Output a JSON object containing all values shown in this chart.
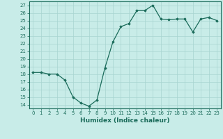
{
  "x": [
    0,
    1,
    2,
    3,
    4,
    5,
    6,
    7,
    8,
    9,
    10,
    11,
    12,
    13,
    14,
    15,
    16,
    17,
    18,
    19,
    20,
    21,
    22,
    23
  ],
  "y": [
    18.2,
    18.2,
    18.0,
    18.0,
    17.2,
    15.0,
    14.2,
    13.8,
    14.6,
    18.8,
    22.2,
    24.2,
    24.6,
    26.3,
    26.3,
    27.0,
    25.2,
    25.1,
    25.2,
    25.2,
    23.5,
    25.2,
    25.4,
    25.0
  ],
  "xlabel": "Humidex (Indice chaleur)",
  "xlim": [
    -0.5,
    23.5
  ],
  "ylim": [
    13.5,
    27.5
  ],
  "yticks": [
    14,
    15,
    16,
    17,
    18,
    19,
    20,
    21,
    22,
    23,
    24,
    25,
    26,
    27
  ],
  "xticks": [
    0,
    1,
    2,
    3,
    4,
    5,
    6,
    7,
    8,
    9,
    10,
    11,
    12,
    13,
    14,
    15,
    16,
    17,
    18,
    19,
    20,
    21,
    22,
    23
  ],
  "line_color": "#1a6b5a",
  "marker": "D",
  "marker_size": 1.8,
  "bg_color": "#c8ece8",
  "grid_color": "#a8d5d0",
  "xlabel_fontsize": 6.5,
  "tick_fontsize": 5.0,
  "linewidth": 0.9
}
